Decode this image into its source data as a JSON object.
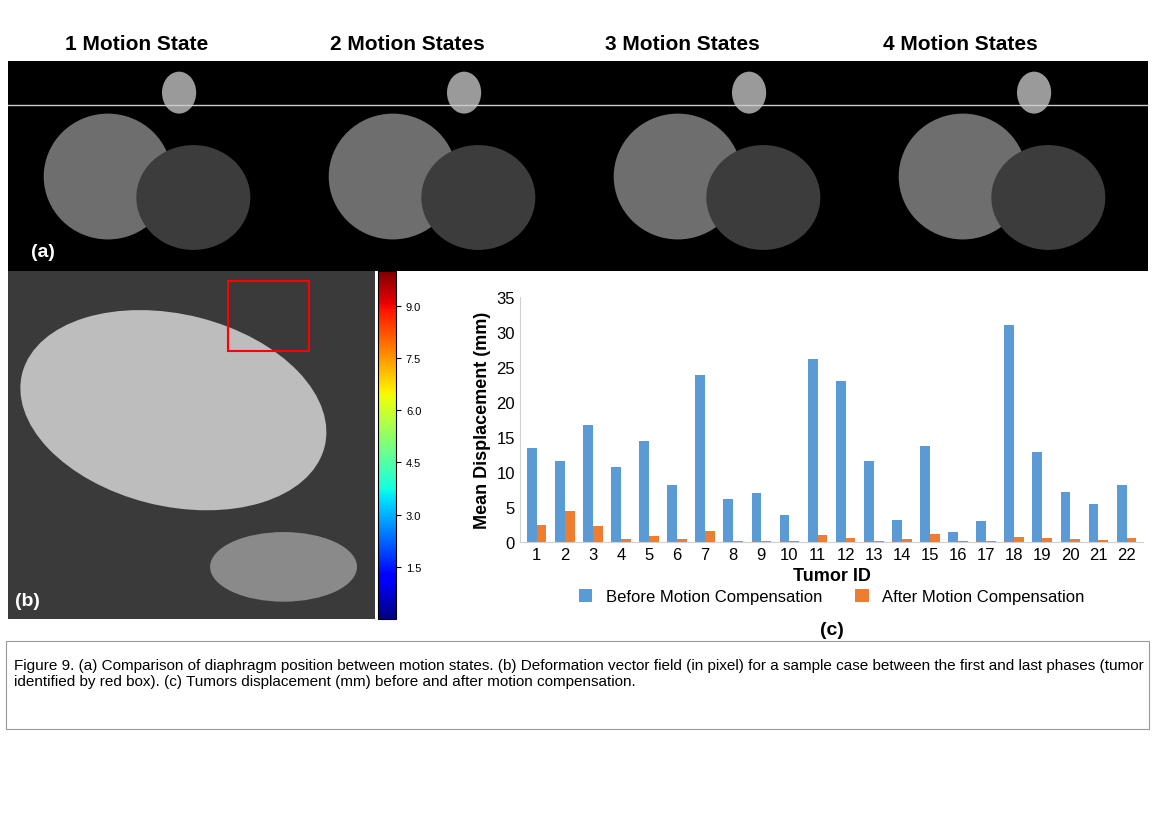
{
  "figure": {
    "panel_a": {
      "label": "(a)",
      "titles": [
        "1 Motion State",
        "2 Motion States",
        "3 Motion States",
        "4 Motion States"
      ]
    },
    "panel_b": {
      "label": "(b)",
      "colorbar_range": [
        0,
        10
      ],
      "colorbar_ticks": [
        1.5,
        3.0,
        4.5,
        6.0,
        7.5,
        9.0
      ]
    },
    "panel_c": {
      "label": "(c)"
    },
    "caption": "Figure 9. (a) Comparison of diaphragm position between motion states. (b) Deformation vector field (in pixel) for a sample case between the first and last phases (tumor identified by red box). (c) Tumors displacement (mm) before and after motion compensation."
  },
  "chart_data": {
    "type": "bar",
    "x_label": "Tumor ID",
    "y_label": "Mean Displacement (mm)",
    "categories": [
      "1",
      "2",
      "3",
      "4",
      "5",
      "6",
      "7",
      "8",
      "9",
      "10",
      "11",
      "12",
      "13",
      "14",
      "15",
      "16",
      "17",
      "18",
      "19",
      "20",
      "21",
      "22"
    ],
    "series": [
      {
        "name": "Before Motion Compensation",
        "color": "#5B9BD5",
        "values": [
          13.4,
          11.6,
          16.7,
          10.7,
          14.5,
          8.2,
          23.9,
          6.1,
          7.0,
          3.9,
          26.2,
          23.0,
          11.6,
          3.1,
          13.8,
          1.4,
          3.0,
          31.1,
          12.9,
          7.2,
          5.5,
          8.1
        ]
      },
      {
        "name": "After Motion Compensation",
        "color": "#ED7D31",
        "values": [
          2.5,
          4.4,
          2.3,
          0.5,
          0.9,
          0.4,
          1.6,
          0.2,
          0.2,
          0.2,
          1.0,
          0.6,
          0.2,
          0.4,
          1.2,
          0.2,
          0.2,
          0.7,
          0.6,
          0.5,
          0.3,
          0.6
        ]
      }
    ],
    "ylim": [
      0,
      35
    ],
    "yticks": [
      0,
      5,
      10,
      15,
      20,
      25,
      30,
      35
    ],
    "grid": false,
    "legend": "lower center",
    "data_labels": false
  }
}
